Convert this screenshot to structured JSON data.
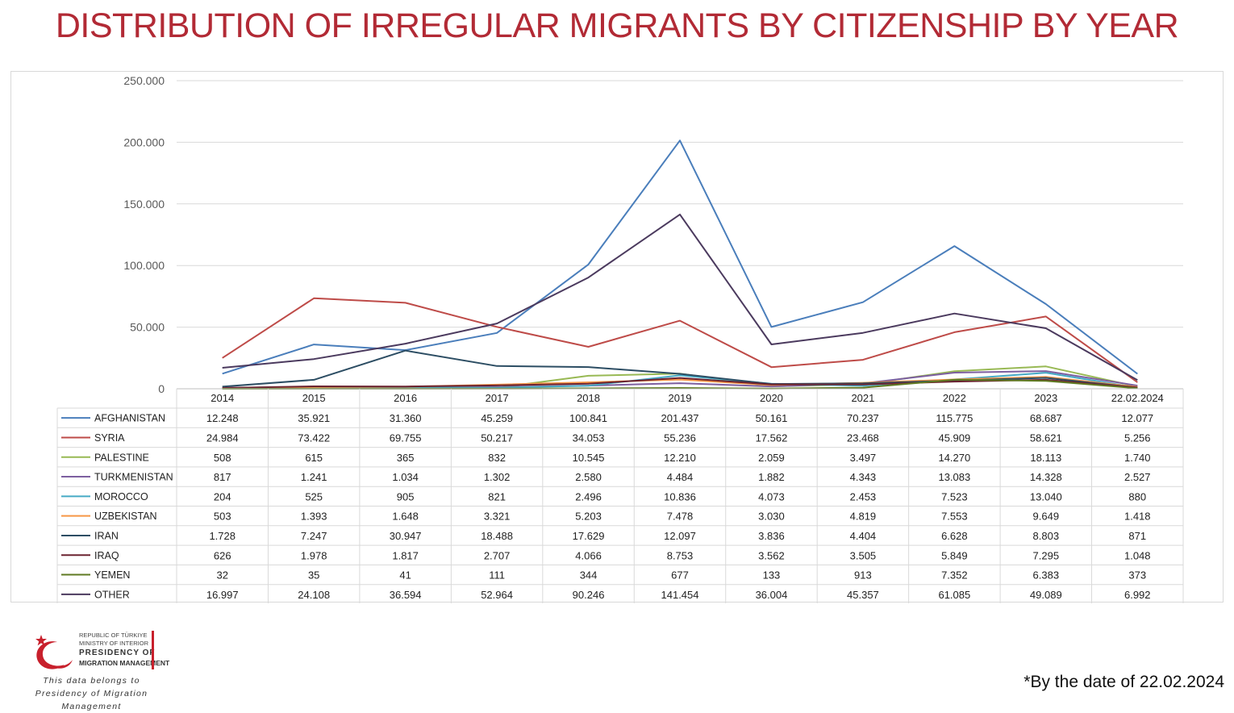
{
  "title": "DISTRIBUTION OF IRREGULAR MIGRANTS BY CITIZENSHIP BY YEAR",
  "footnote": "*By the date of 22.02.2024",
  "logo": {
    "line1": "REPUBLIC OF TÜRKIYE",
    "line2": "MINISTRY OF INTERIOR",
    "line3": "PRESIDENCY OF",
    "line4": "MIGRATION MANAGEMENT",
    "credit_line1": "This data belongs to",
    "credit_line2": "Presidency of Migration Management",
    "colors": {
      "brand_red": "#c8202c"
    }
  },
  "chart_data": {
    "type": "line",
    "title": "",
    "xlabel": "",
    "ylabel": "",
    "ylim": [
      0,
      250000
    ],
    "yticks": [
      "0",
      "50.000",
      "100.000",
      "150.000",
      "200.000",
      "250.000"
    ],
    "ytick_values": [
      0,
      50000,
      100000,
      150000,
      200000,
      250000
    ],
    "grid": true,
    "legend": "data-table-below",
    "x": [
      "2014",
      "2015",
      "2016",
      "2017",
      "2018",
      "2019",
      "2020",
      "2021",
      "2022",
      "2023",
      "22.02.2024"
    ],
    "series": [
      {
        "name": "AFGHANISTAN",
        "color": "#4a7ebb",
        "values": [
          12248,
          35921,
          31360,
          45259,
          100841,
          201437,
          50161,
          70237,
          115775,
          68687,
          12077
        ],
        "labels": [
          "12.248",
          "35.921",
          "31.360",
          "45.259",
          "100.841",
          "201.437",
          "50.161",
          "70.237",
          "115.775",
          "68.687",
          "12.077"
        ]
      },
      {
        "name": "SYRIA",
        "color": "#be4b48",
        "values": [
          24984,
          73422,
          69755,
          50217,
          34053,
          55236,
          17562,
          23468,
          45909,
          58621,
          5256
        ],
        "labels": [
          "24.984",
          "73.422",
          "69.755",
          "50.217",
          "34.053",
          "55.236",
          "17.562",
          "23.468",
          "45.909",
          "58.621",
          "5.256"
        ]
      },
      {
        "name": "PALESTINE",
        "color": "#98b954",
        "values": [
          508,
          615,
          365,
          832,
          10545,
          12210,
          2059,
          3497,
          14270,
          18113,
          1740
        ],
        "labels": [
          "508",
          "615",
          "365",
          "832",
          "10.545",
          "12.210",
          "2.059",
          "3.497",
          "14.270",
          "18.113",
          "1.740"
        ]
      },
      {
        "name": "TURKMENISTAN",
        "color": "#7d5fa0",
        "values": [
          817,
          1241,
          1034,
          1302,
          2580,
          4484,
          1882,
          4343,
          13083,
          14328,
          2527
        ],
        "labels": [
          "817",
          "1.241",
          "1.034",
          "1.302",
          "2.580",
          "4.484",
          "1.882",
          "4.343",
          "13.083",
          "14.328",
          "2.527"
        ]
      },
      {
        "name": "MOROCCO",
        "color": "#46aac5",
        "values": [
          204,
          525,
          905,
          821,
          2496,
          10836,
          4073,
          2453,
          7523,
          13040,
          880
        ],
        "labels": [
          "204",
          "525",
          "905",
          "821",
          "2.496",
          "10.836",
          "4.073",
          "2.453",
          "7.523",
          "13.040",
          "880"
        ]
      },
      {
        "name": "UZBEKISTAN",
        "color": "#f79646",
        "values": [
          503,
          1393,
          1648,
          3321,
          5203,
          7478,
          3030,
          4819,
          7553,
          9649,
          1418
        ],
        "labels": [
          "503",
          "1.393",
          "1.648",
          "3.321",
          "5.203",
          "7.478",
          "3.030",
          "4.819",
          "7.553",
          "9.649",
          "1.418"
        ]
      },
      {
        "name": "IRAN",
        "color": "#2c4d63",
        "values": [
          1728,
          7247,
          30947,
          18488,
          17629,
          12097,
          3836,
          4404,
          6628,
          8803,
          871
        ],
        "labels": [
          "1.728",
          "7.247",
          "30.947",
          "18.488",
          "17.629",
          "12.097",
          "3.836",
          "4.404",
          "6.628",
          "8.803",
          "871"
        ]
      },
      {
        "name": "IRAQ",
        "color": "#6b2330",
        "values": [
          626,
          1978,
          1817,
          2707,
          4066,
          8753,
          3562,
          3505,
          5849,
          7295,
          1048
        ],
        "labels": [
          "626",
          "1.978",
          "1.817",
          "2.707",
          "4.066",
          "8.753",
          "3.562",
          "3.505",
          "5.849",
          "7.295",
          "1.048"
        ]
      },
      {
        "name": "YEMEN",
        "color": "#5f7a22",
        "values": [
          32,
          35,
          41,
          111,
          344,
          677,
          133,
          913,
          7352,
          6383,
          373
        ],
        "labels": [
          "32",
          "35",
          "41",
          "111",
          "344",
          "677",
          "133",
          "913",
          "7.352",
          "6.383",
          "373"
        ]
      },
      {
        "name": "OTHER",
        "color": "#4b3a5e",
        "values": [
          16997,
          24108,
          36594,
          52964,
          90246,
          141454,
          36004,
          45357,
          61085,
          49089,
          6992
        ],
        "labels": [
          "16.997",
          "24.108",
          "36.594",
          "52.964",
          "90.246",
          "141.454",
          "36.004",
          "45.357",
          "61.085",
          "49.089",
          "6.992"
        ]
      }
    ]
  }
}
